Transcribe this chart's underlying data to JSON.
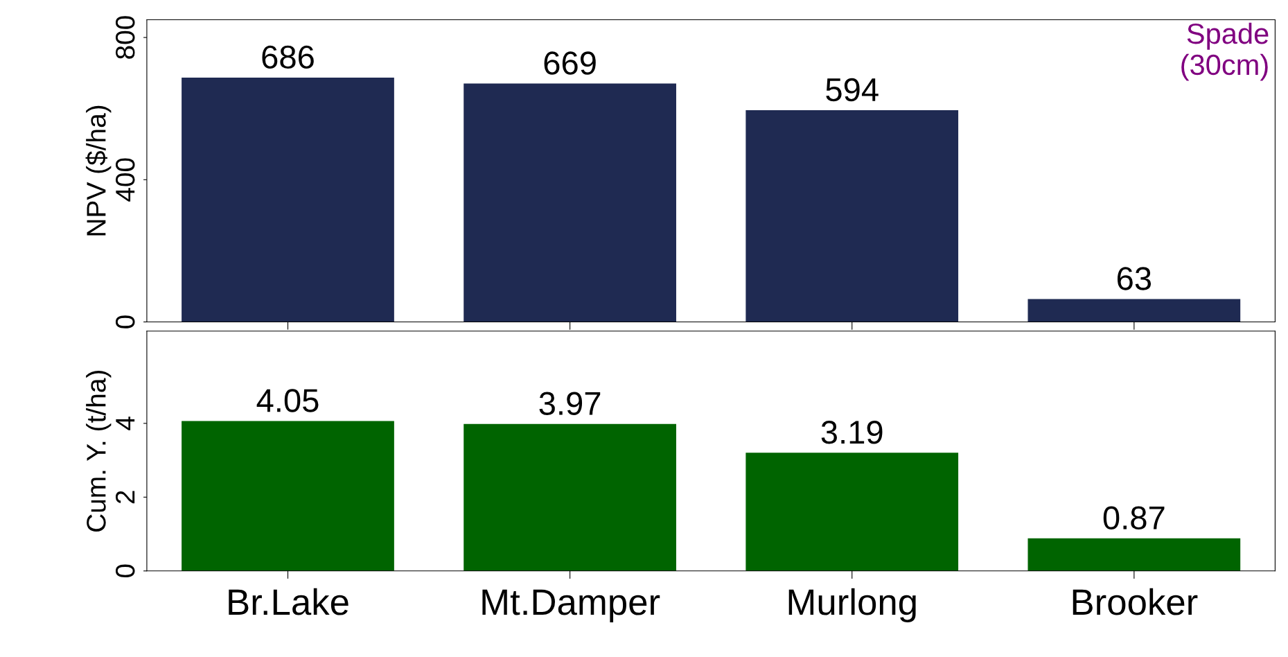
{
  "chart_data": [
    {
      "type": "bar",
      "ylabel": "NPV ($/ha)",
      "categories": [
        null,
        null,
        null,
        null
      ],
      "values": [
        686,
        669,
        594,
        63
      ],
      "color": "#1f2a52",
      "ylim": [
        0,
        850
      ],
      "yticks": [
        0,
        400,
        800
      ],
      "data_labels": true,
      "tick_labels": "y",
      "annotations": [
        "Spade\n(30cm)"
      ]
    },
    {
      "type": "bar",
      "ylabel": "Cum. Y. (t/ha)",
      "categories": [
        "Br.Lake",
        "Mt.Damper",
        "Murlong",
        "Brooker"
      ],
      "values": [
        4.05,
        3.97,
        3.19,
        0.87
      ],
      "color": "#006400",
      "ylim": [
        0,
        6.5
      ],
      "yticks": [
        0,
        2,
        4
      ],
      "data_labels": true
    }
  ]
}
